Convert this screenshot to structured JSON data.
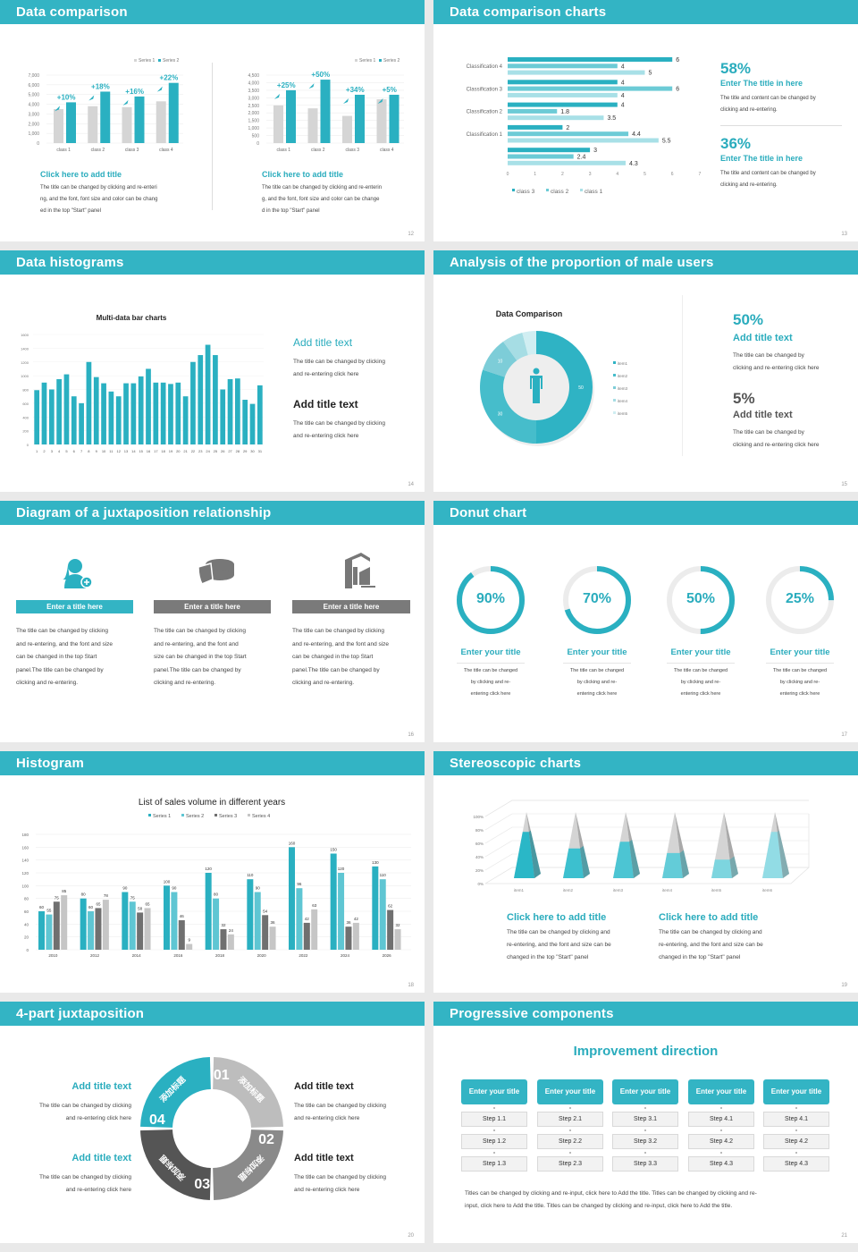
{
  "colors": {
    "accent": "#33b4c4",
    "gray": "#d5d5d5",
    "dark_gray": "#7a7a7a"
  },
  "s12": {
    "title": "Data comparison",
    "page": "12",
    "charts": [
      {
        "legend": [
          "Series 1",
          "Series 2"
        ],
        "yticks": [
          "7,000",
          "6,000",
          "5,000",
          "4,000",
          "3,000",
          "2,000",
          "1,000",
          "0"
        ],
        "title": "Click here to add title",
        "body": [
          "The title can be changed by clicking and re-enteri",
          "ng, and the font, font size and color can be chang",
          "ed in the top \"Start\" panel"
        ]
      },
      {
        "legend": [
          "Series 1",
          "Series 2"
        ],
        "yticks": [
          "4,500",
          "4,000",
          "3,500",
          "3,000",
          "2,500",
          "2,000",
          "1,500",
          "1,000",
          "500",
          "0"
        ],
        "title": "Click here to add title",
        "body": [
          "The title can be changed by clicking and re-enterin",
          "g, and the font, font size and color can be change",
          "d in the top \"Start\" panel"
        ]
      }
    ]
  },
  "s13": {
    "title": "Data comparison charts",
    "page": "13",
    "stats": [
      {
        "value": "58%",
        "title": "Enter The title in here",
        "body": [
          "The title and content can be changed by",
          "clicking and re-entering."
        ]
      },
      {
        "value": "36%",
        "title": "Enter The title in here",
        "body": [
          "The title and content can be changed by",
          "clicking and re-entering."
        ]
      }
    ]
  },
  "s14": {
    "title": "Data histograms",
    "page": "14",
    "blocks": [
      {
        "title": "Add title text",
        "body": [
          "The title can be changed by clicking",
          "and re-entering click here"
        ]
      },
      {
        "title": "Add title text",
        "body": [
          "The title can be changed by clicking",
          "and re-entering click here"
        ]
      }
    ]
  },
  "s15": {
    "title": "Analysis of the proportion of male users",
    "page": "15",
    "icon": "person-icon",
    "stats": [
      {
        "value": "50%",
        "title": "Add title text",
        "body": [
          "The title can be changed by",
          "clicking and re-entering click here"
        ]
      },
      {
        "value": "5%",
        "title": "Add title text",
        "body": [
          "The title can be changed by",
          "clicking and re-entering click here"
        ]
      }
    ]
  },
  "s16": {
    "title": "Diagram of a juxtaposition relationship",
    "page": "16",
    "items": [
      {
        "icon": "user-add-icon",
        "label": "Enter a title here",
        "body": [
          "The title can be changed by clicking",
          "and re-entering, and the font and size",
          "can be changed in the top Start",
          "panel.The title can be changed by",
          "clicking and re-entering."
        ]
      },
      {
        "icon": "pie-chart-icon",
        "label": "Enter a title here",
        "body": [
          "The title can be changed by clicking",
          "and re-entering, and the font and",
          "size can be changed in the top Start",
          "panel.The title can be changed by",
          "clicking and re-entering."
        ]
      },
      {
        "icon": "building-icon",
        "label": "Enter a title here",
        "body": [
          "The title can be changed by clicking",
          "and re-entering, and the font and size",
          "can be changed in the top Start",
          "panel.The title can be changed by",
          "clicking and re-entering."
        ]
      }
    ]
  },
  "s17": {
    "title": "Donut chart",
    "page": "17",
    "rings": [
      {
        "value": 90,
        "label": "90%",
        "title": "Enter your title",
        "body": [
          "The title can be changed",
          "by clicking and re-",
          "entering click here"
        ]
      },
      {
        "value": 70,
        "label": "70%",
        "title": "Enter your title",
        "body": [
          "The title can be changed",
          "by clicking and re-",
          "entering click here"
        ]
      },
      {
        "value": 50,
        "label": "50%",
        "title": "Enter your title",
        "body": [
          "The title can be changed",
          "by clicking and re-",
          "entering click here"
        ]
      },
      {
        "value": 25,
        "label": "25%",
        "title": "Enter your title",
        "body": [
          "The title can be changed",
          "by clicking and re-",
          "entering click here"
        ]
      }
    ]
  },
  "s18": {
    "title": "Histogram",
    "page": "18"
  },
  "s19": {
    "title": "Stereoscopic charts",
    "page": "19",
    "blocks": [
      {
        "title": "Click here to add title",
        "body": [
          "The title can be changed by clicking and",
          "re-entering, and the font and size can be",
          "changed in the top \"Start\" panel"
        ]
      },
      {
        "title": "Click here to add title",
        "body": [
          "The title can be changed by clicking and",
          "re-entering, and the font and size can be",
          "changed in the top \"Start\" panel"
        ]
      }
    ]
  },
  "s20": {
    "title": "4-part juxtaposition",
    "page": "20",
    "segments": [
      {
        "num": "01",
        "text": "添加标题"
      },
      {
        "num": "02",
        "text": "添加标题"
      },
      {
        "num": "03",
        "text": "添加标题"
      },
      {
        "num": "04",
        "text": "添加标题"
      }
    ],
    "blocks": [
      {
        "title": "Add title text",
        "body": [
          "The title can be changed by clicking",
          "and re-entering click here"
        ]
      },
      {
        "title": "Add title text",
        "body": [
          "The title can be changed by clicking",
          "and re-entering click here"
        ]
      },
      {
        "title": "Add title text",
        "body": [
          "The title can be changed by clicking",
          "and re-entering click here"
        ]
      },
      {
        "title": "Add title text",
        "body": [
          "The title can be changed by clicking",
          "and re-entering click here"
        ]
      }
    ]
  },
  "s21": {
    "title": "Progressive components",
    "page": "21",
    "heading": "Improvement direction",
    "columns": [
      {
        "title": "Enter your title",
        "steps": [
          "Step 1.1",
          "Step 1.2",
          "Step 1.3"
        ]
      },
      {
        "title": "Enter your title",
        "steps": [
          "Step 2.1",
          "Step 2.2",
          "Step 2.3"
        ]
      },
      {
        "title": "Enter your title",
        "steps": [
          "Step 3.1",
          "Step 3.2",
          "Step 3.3"
        ]
      },
      {
        "title": "Enter your title",
        "steps": [
          "Step 4.1",
          "Step 4.2",
          "Step 4.3"
        ]
      },
      {
        "title": "Enter your title",
        "steps": [
          "Step 4.1",
          "Step 4.2",
          "Step 4.3"
        ]
      }
    ],
    "footer": [
      "Titles can be changed by clicking and re-input, click here to Add the title. Titles can be changed by clicking and re-",
      "input, click here to Add the title. Titles can be changed by clicking and re-input, click here to Add the title."
    ]
  },
  "chart_data": [
    {
      "id": "s12a",
      "type": "bar",
      "categories": [
        "class 1",
        "class 2",
        "class 3",
        "class 4"
      ],
      "ylim": [
        0,
        7000
      ],
      "series": [
        {
          "name": "Series 1",
          "values": [
            3500,
            3800,
            3700,
            4300
          ]
        },
        {
          "name": "Series 2",
          "values": [
            4200,
            5300,
            4800,
            6200
          ]
        }
      ],
      "annotations": [
        "+10%",
        "+18%",
        "+16%",
        "+22%"
      ],
      "legend": "top-right",
      "grid": true
    },
    {
      "id": "s12b",
      "type": "bar",
      "categories": [
        "class 1",
        "class 2",
        "class 3",
        "class 4"
      ],
      "ylim": [
        0,
        4500
      ],
      "series": [
        {
          "name": "Series 1",
          "values": [
            2500,
            2300,
            1800,
            2900
          ]
        },
        {
          "name": "Series 2",
          "values": [
            3500,
            4200,
            3200,
            3200
          ]
        }
      ],
      "annotations": [
        "+25%",
        "+50%",
        "+34%",
        "+5%"
      ],
      "legend": "top-right",
      "grid": true
    },
    {
      "id": "s13",
      "type": "bar",
      "orientation": "horizontal",
      "categories": [
        "Classification 4",
        "Classification 3",
        "Classification 2",
        "Classification 1",
        ""
      ],
      "xlim": [
        0,
        7
      ],
      "xticks": [
        "0",
        "1",
        "2",
        "3",
        "4",
        "5",
        "6",
        "7"
      ],
      "series": [
        {
          "name": "class 3",
          "values": [
            6,
            4,
            4,
            2,
            3
          ]
        },
        {
          "name": "class 2",
          "values": [
            4,
            6,
            1.8,
            4.4,
            2.4
          ]
        },
        {
          "name": "class 1",
          "values": [
            5,
            4,
            3.5,
            5.5,
            4.3
          ]
        }
      ],
      "legend": "bottom"
    },
    {
      "id": "s14",
      "type": "bar",
      "title": "Multi-data bar charts",
      "ylim": [
        0,
        1600
      ],
      "yticks": [
        "1600",
        "1400",
        "1200",
        "1000",
        "800",
        "600",
        "400",
        "200",
        "0"
      ],
      "categories": [
        "1",
        "2",
        "3",
        "4",
        "5",
        "6",
        "7",
        "8",
        "9",
        "10",
        "11",
        "12",
        "13",
        "14",
        "15",
        "16",
        "17",
        "18",
        "19",
        "20",
        "21",
        "22",
        "23",
        "24",
        "25",
        "26",
        "27",
        "28",
        "29",
        "30",
        "31"
      ],
      "values": [
        790,
        900,
        800,
        950,
        1020,
        700,
        600,
        1200,
        980,
        890,
        770,
        700,
        890,
        890,
        990,
        1100,
        900,
        900,
        880,
        900,
        700,
        1200,
        1300,
        1450,
        1300,
        800,
        950,
        960,
        650,
        590,
        860
      ],
      "grid": true
    },
    {
      "id": "s15",
      "type": "pie",
      "donut": true,
      "title": "Data Comparison",
      "categories": [
        "item1",
        "item2",
        "item3",
        "item4",
        "item5"
      ],
      "values": [
        50,
        30,
        10,
        6,
        4
      ],
      "data_labels": [
        "50",
        "30",
        "10",
        "",
        ""
      ],
      "legend": "right"
    },
    {
      "id": "s18",
      "type": "bar",
      "title": "List of sales volume in different years",
      "ylim": [
        0,
        180
      ],
      "yticks": [
        "180",
        "160",
        "140",
        "120",
        "100",
        "80",
        "60",
        "40",
        "20",
        "0"
      ],
      "categories": [
        "2010",
        "2012",
        "2014",
        "2016",
        "2018",
        "2020",
        "2022",
        "2024",
        "2026"
      ],
      "series": [
        {
          "name": "Series 1",
          "values": [
            60,
            80,
            90,
            100,
            120,
            110,
            160,
            150,
            130
          ]
        },
        {
          "name": "Series 2",
          "values": [
            55,
            60,
            75,
            90,
            80,
            90,
            96,
            120,
            110
          ]
        },
        {
          "name": "Series 3",
          "values": [
            75,
            65,
            58,
            46,
            32,
            54,
            42,
            36,
            62
          ]
        },
        {
          "name": "Series 4",
          "values": [
            85,
            78,
            65,
            9,
            24,
            36,
            63,
            42,
            32
          ]
        }
      ],
      "legend": "top",
      "grid": true
    },
    {
      "id": "s19",
      "type": "bar",
      "style": "3d-pyramid",
      "ylim": [
        0,
        100
      ],
      "yticks": [
        "100%",
        "80%",
        "60%",
        "40%",
        "20%",
        "0%"
      ],
      "categories": [
        "item1",
        "item2",
        "item3",
        "item4",
        "item5",
        "item6"
      ],
      "values": [
        70,
        45,
        55,
        38,
        28,
        70
      ],
      "grid": true
    }
  ]
}
